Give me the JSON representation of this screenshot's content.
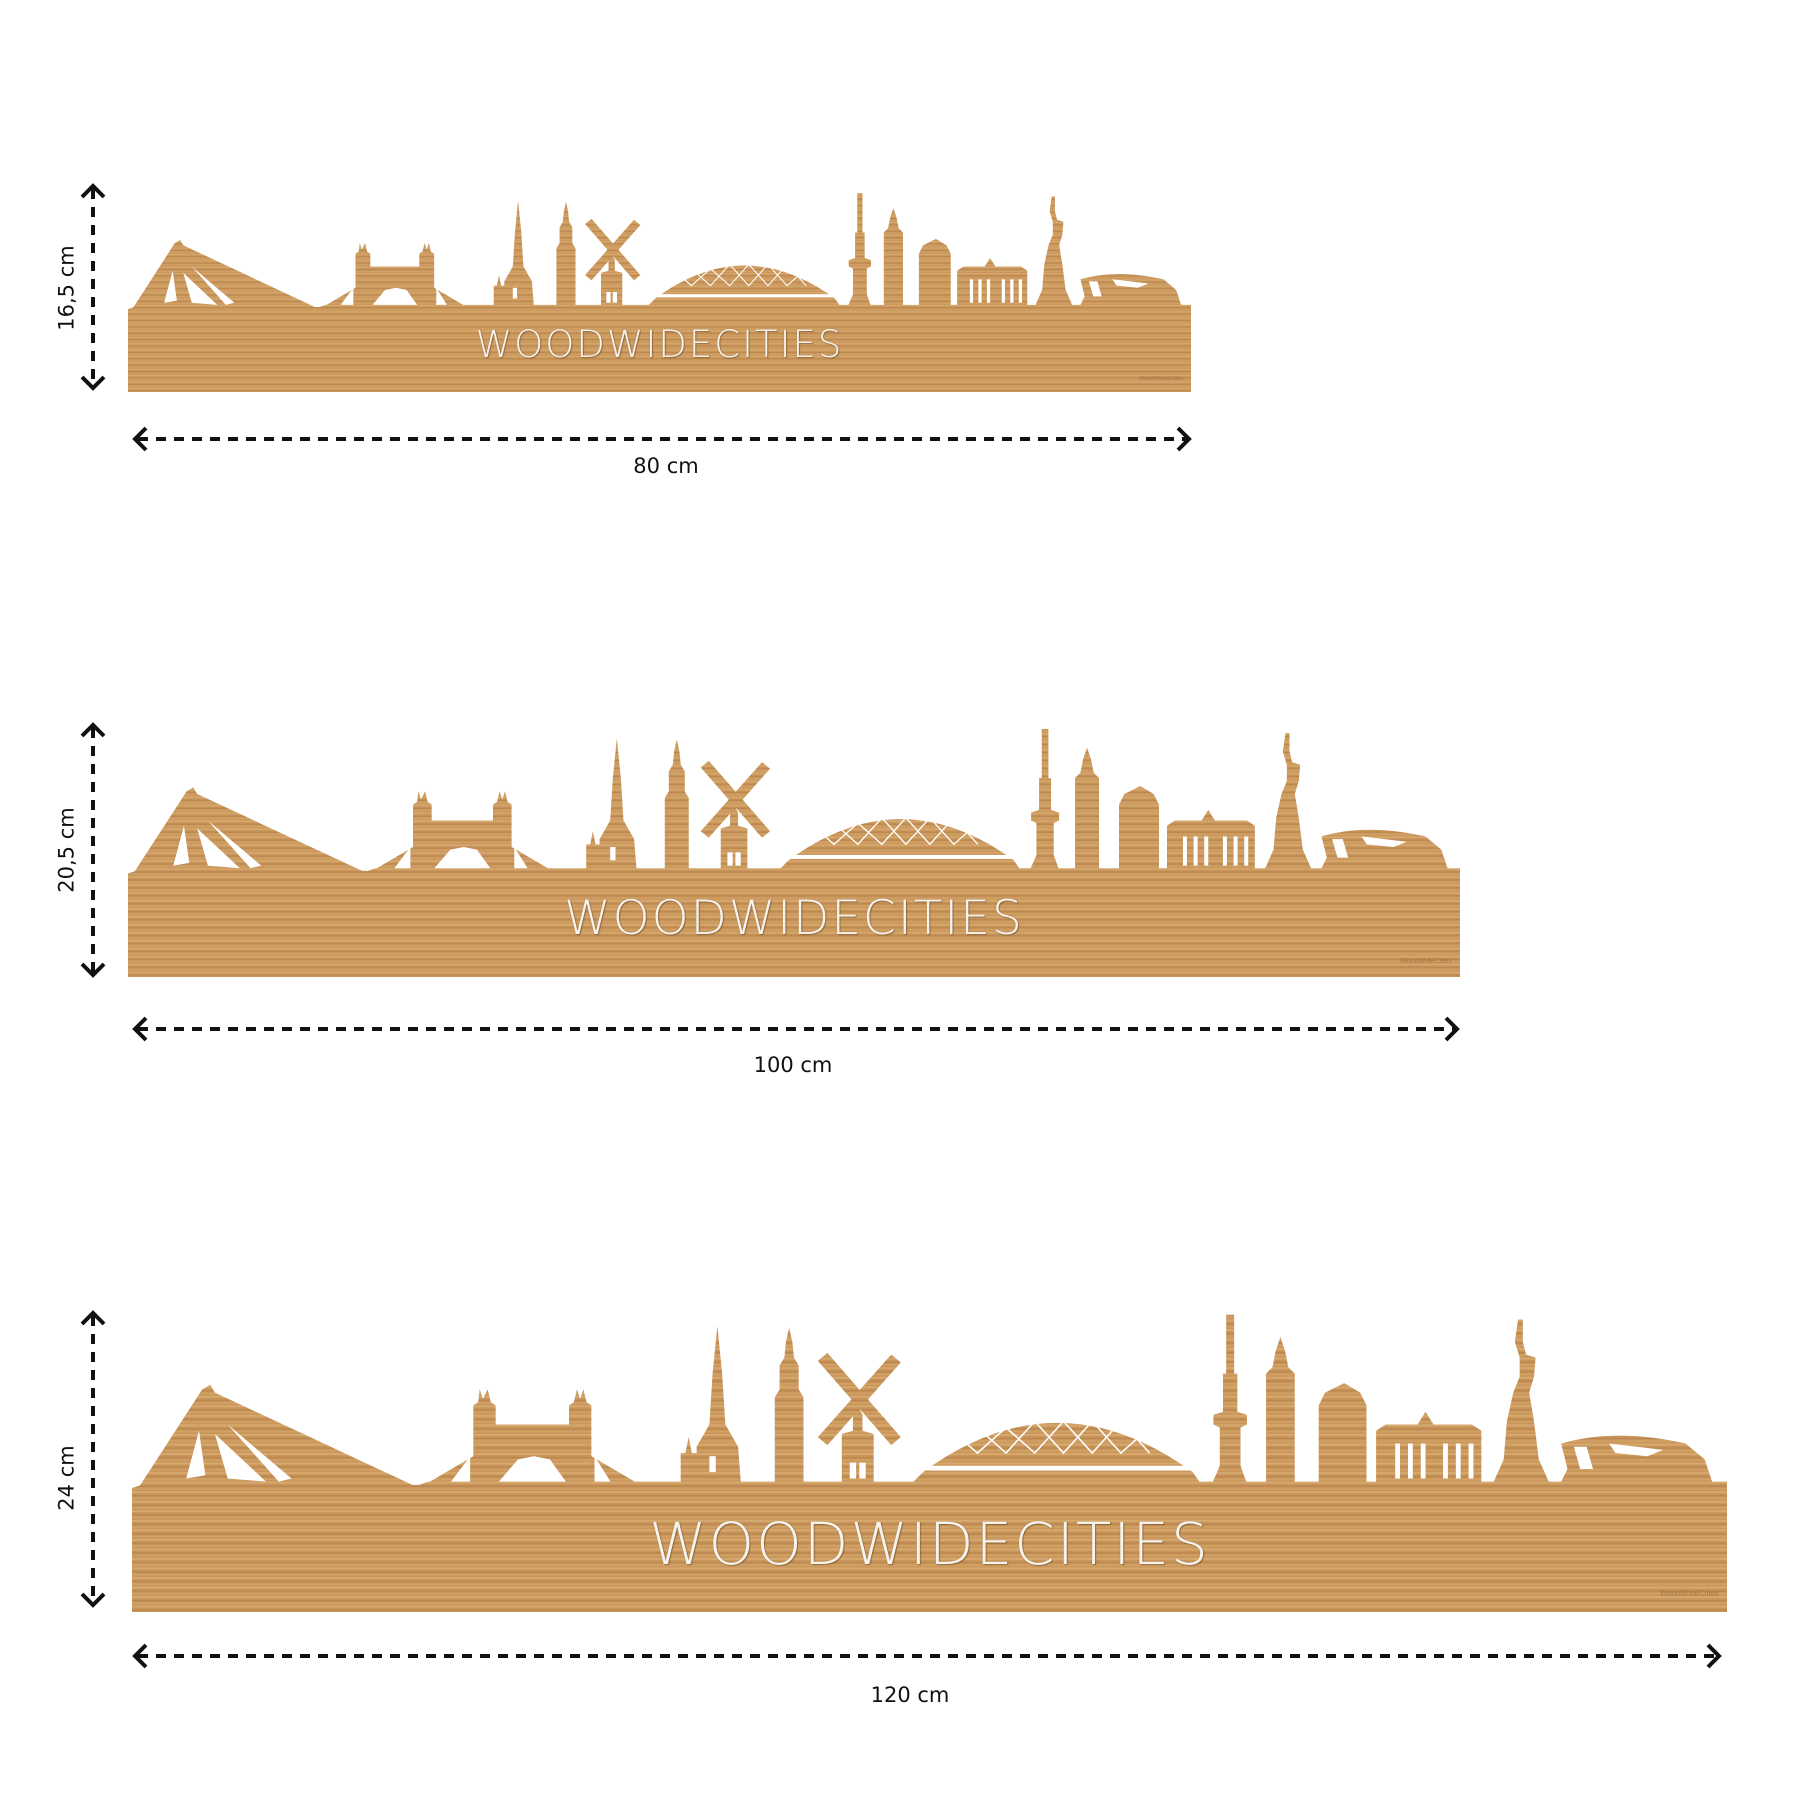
{
  "brand_text": "WOODWIDECITIES",
  "logo_text": "WoodWideCities",
  "colors": {
    "wood": "#c9955a",
    "wood_light": "#d8ac72",
    "wood_dark": "#b5834a",
    "arrow": "#111111",
    "background": "#ffffff"
  },
  "panels": [
    {
      "height_label": "16,5 cm",
      "width_label": "80 cm"
    },
    {
      "height_label": "20,5 cm",
      "width_label": "100 cm"
    },
    {
      "height_label": "24 cm",
      "width_label": "120 cm"
    }
  ]
}
